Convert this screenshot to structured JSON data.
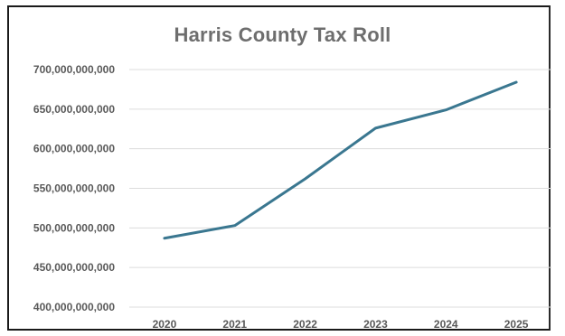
{
  "chart_data": {
    "type": "line",
    "title": "Harris County Tax Roll",
    "xlabel": "",
    "ylabel": "",
    "categories": [
      "2020",
      "2021",
      "2022",
      "2023",
      "2024",
      "2025"
    ],
    "series": [
      {
        "values": [
          487000000000,
          503000000000,
          562000000000,
          626000000000,
          649000000000,
          684000000000
        ]
      }
    ],
    "ylim": [
      400000000000,
      700000000000
    ],
    "yticks": [
      400000000000,
      450000000000,
      500000000000,
      550000000000,
      600000000000,
      650000000000,
      700000000000
    ],
    "ytick_labels": [
      "400,000,000,000",
      "450,000,000,000",
      "500,000,000,000",
      "550,000,000,000",
      "600,000,000,000",
      "650,000,000,000",
      "700,000,000,000"
    ],
    "grid": true,
    "legend": "none",
    "line_color": "#3a7790",
    "grid_color": "#dcdcdc"
  }
}
